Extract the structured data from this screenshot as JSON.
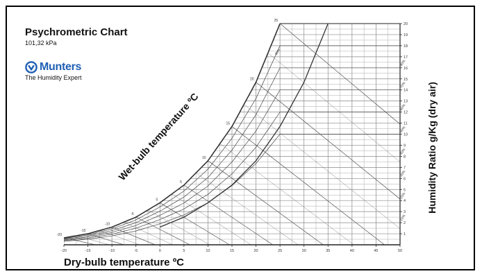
{
  "header": {
    "title": "Psychrometric Chart",
    "pressure": "101,32 kPa"
  },
  "brand": {
    "logo_text": "Munters",
    "tagline": "The Humidity Expert",
    "color": "#1f5fb3"
  },
  "chart_data": {
    "type": "line",
    "title": "Psychrometric Chart",
    "subtitle": "101,32 kPa",
    "xlabel": "Dry-bulb temperature ºC",
    "ylabel": "Humidity Ratio g/Kg (dry air)",
    "curve_label": "Wet-bulb temperature ºC",
    "xlim": [
      -20,
      50
    ],
    "ylim": [
      0,
      20
    ],
    "x_ticks": [
      "-20",
      "-15",
      "-10",
      "-5",
      "0",
      "5",
      "10",
      "15",
      "20",
      "25",
      "30",
      "35",
      "40",
      "45",
      "50"
    ],
    "y_ticks": [
      "1",
      "2",
      "3",
      "4",
      "5",
      "6",
      "7",
      "8",
      "9",
      "10",
      "11",
      "12",
      "13",
      "14",
      "15",
      "16",
      "17",
      "18",
      "19",
      "20"
    ],
    "wetbulb_ticks": [
      "-20",
      "-15",
      "-10",
      "-5",
      "0",
      "5",
      "10",
      "15",
      "20",
      "25"
    ],
    "rh_ticks": [
      "10%",
      "20%",
      "30%",
      "40%",
      "50%",
      "60%",
      "70%",
      "80%",
      "90%"
    ],
    "saturation_curve": {
      "x": [
        -20,
        -15,
        -10,
        -5,
        0,
        5,
        10,
        15,
        20,
        25
      ],
      "y": [
        0.63,
        1.0,
        1.6,
        2.5,
        3.8,
        5.4,
        7.6,
        10.7,
        14.7,
        20.0
      ]
    },
    "series": [
      {
        "rh": 90,
        "values": [
          0.57,
          0.9,
          1.44,
          2.25,
          3.42,
          4.86,
          6.84,
          9.63,
          13.23,
          18.0
        ]
      },
      {
        "rh": 80,
        "values": [
          0.5,
          0.8,
          1.28,
          2.0,
          3.04,
          4.32,
          6.08,
          8.56,
          11.76,
          16.0
        ]
      },
      {
        "rh": 70,
        "values": [
          0.44,
          0.7,
          1.12,
          1.75,
          2.66,
          3.78,
          5.32,
          7.49,
          10.29,
          14.0
        ]
      },
      {
        "rh": 60,
        "values": [
          0.38,
          0.6,
          0.96,
          1.5,
          2.28,
          3.24,
          4.56,
          6.42,
          8.82,
          12.0
        ]
      },
      {
        "rh": 50,
        "values": [
          0.32,
          0.5,
          0.8,
          1.25,
          1.9,
          2.7,
          3.8,
          5.35,
          7.35,
          10.0
        ]
      }
    ],
    "grid": true
  }
}
